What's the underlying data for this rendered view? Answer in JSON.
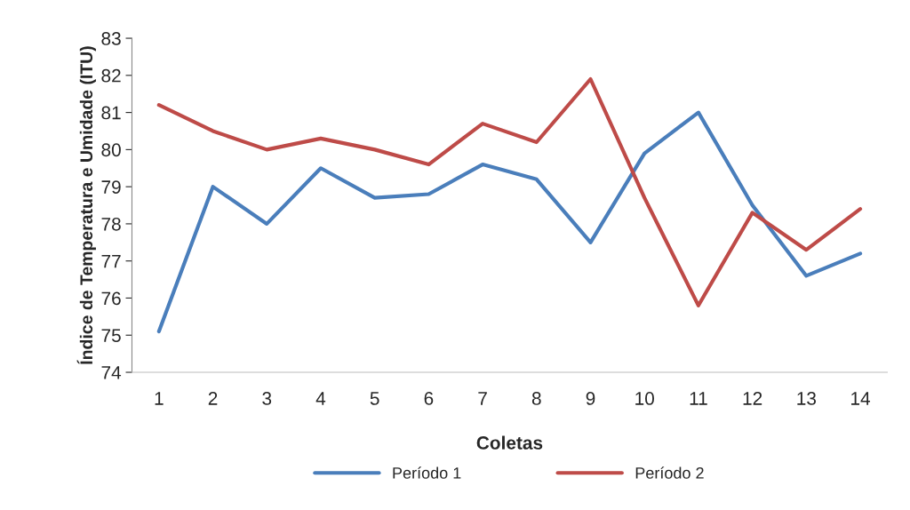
{
  "chart_data": {
    "type": "line",
    "xlabel": "Coletas",
    "ylabel": "Índice de Temperatura e Umidade (ITU)",
    "categories": [
      "1",
      "2",
      "3",
      "4",
      "5",
      "6",
      "7",
      "8",
      "9",
      "10",
      "11",
      "12",
      "13",
      "14"
    ],
    "series": [
      {
        "name": "Período 1",
        "color": "#4a7ebb",
        "values": [
          75.1,
          79.0,
          78.0,
          79.5,
          78.7,
          78.8,
          79.6,
          79.2,
          77.5,
          79.9,
          81.0,
          78.5,
          76.6,
          77.2
        ]
      },
      {
        "name": "Período 2",
        "color": "#be4b48",
        "values": [
          81.2,
          80.5,
          80.0,
          80.3,
          80.0,
          79.6,
          80.7,
          80.2,
          81.9,
          78.7,
          75.8,
          78.3,
          77.3,
          78.4
        ]
      }
    ],
    "ylim": [
      74,
      83
    ],
    "yticks": [
      74,
      75,
      76,
      77,
      78,
      79,
      80,
      81,
      82,
      83
    ],
    "grid": false,
    "legend": "bottom",
    "marker": "none",
    "line_style": "solid"
  }
}
